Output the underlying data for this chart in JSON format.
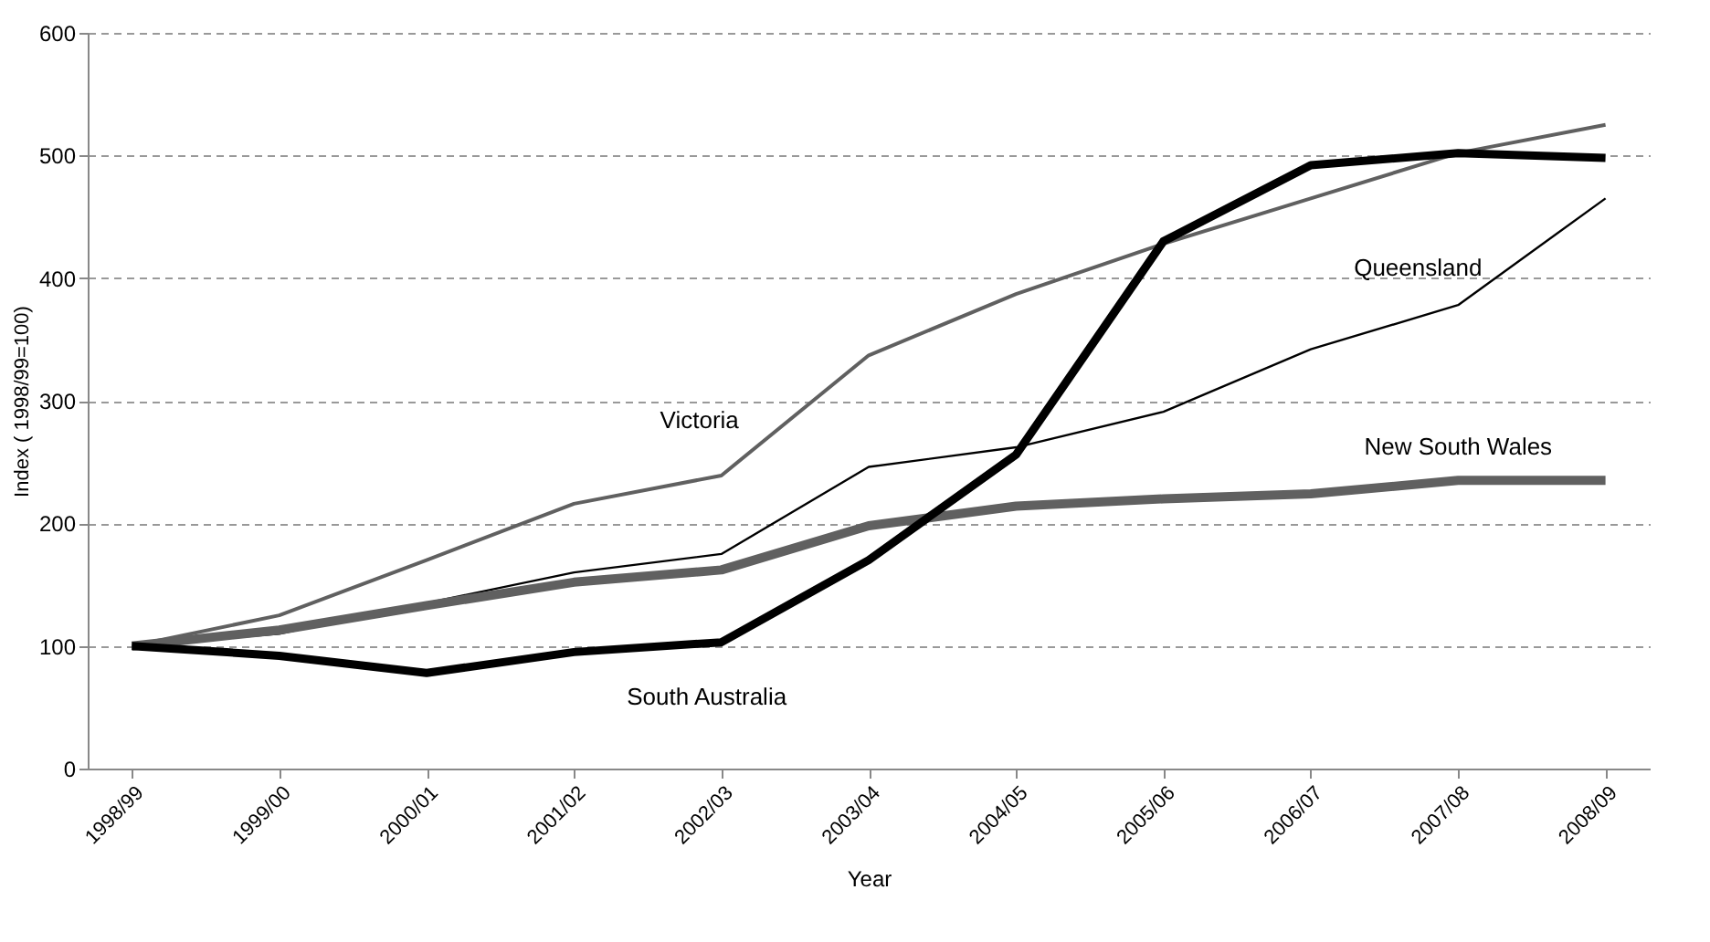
{
  "chart_data": {
    "type": "line",
    "xlabel": "Year",
    "ylabel": "Index ( 1998/99=100)",
    "categories": [
      "1998/99",
      "1999/00",
      "2000/01",
      "2001/02",
      "2002/03",
      "2003/04",
      "2004/05",
      "2005/06",
      "2006/07",
      "2007/08",
      "2008/09"
    ],
    "series": [
      {
        "name": "Victoria",
        "color": "#606060",
        "values": [
          100,
          125,
          170,
          216,
          239,
          337,
          387,
          428,
          465,
          502,
          525
        ]
      },
      {
        "name": "Queensland",
        "color": "#000000",
        "values": [
          100,
          110,
          135,
          160,
          175,
          246,
          262,
          291,
          342,
          378,
          465
        ]
      },
      {
        "name": "New South Wales",
        "color": "#606060",
        "values": [
          100,
          113,
          133,
          152,
          162,
          198,
          214,
          220,
          224,
          235,
          235
        ]
      },
      {
        "name": "South Australia",
        "color": "#000000",
        "values": [
          100,
          92,
          78,
          95,
          103,
          170,
          256,
          430,
          492,
          502,
          498
        ]
      }
    ],
    "ylim": [
      0,
      600
    ],
    "yticks": [
      0,
      100,
      200,
      300,
      400,
      500,
      600
    ],
    "grid": "y",
    "legend": false,
    "marker": "none",
    "line_style": "solid"
  }
}
